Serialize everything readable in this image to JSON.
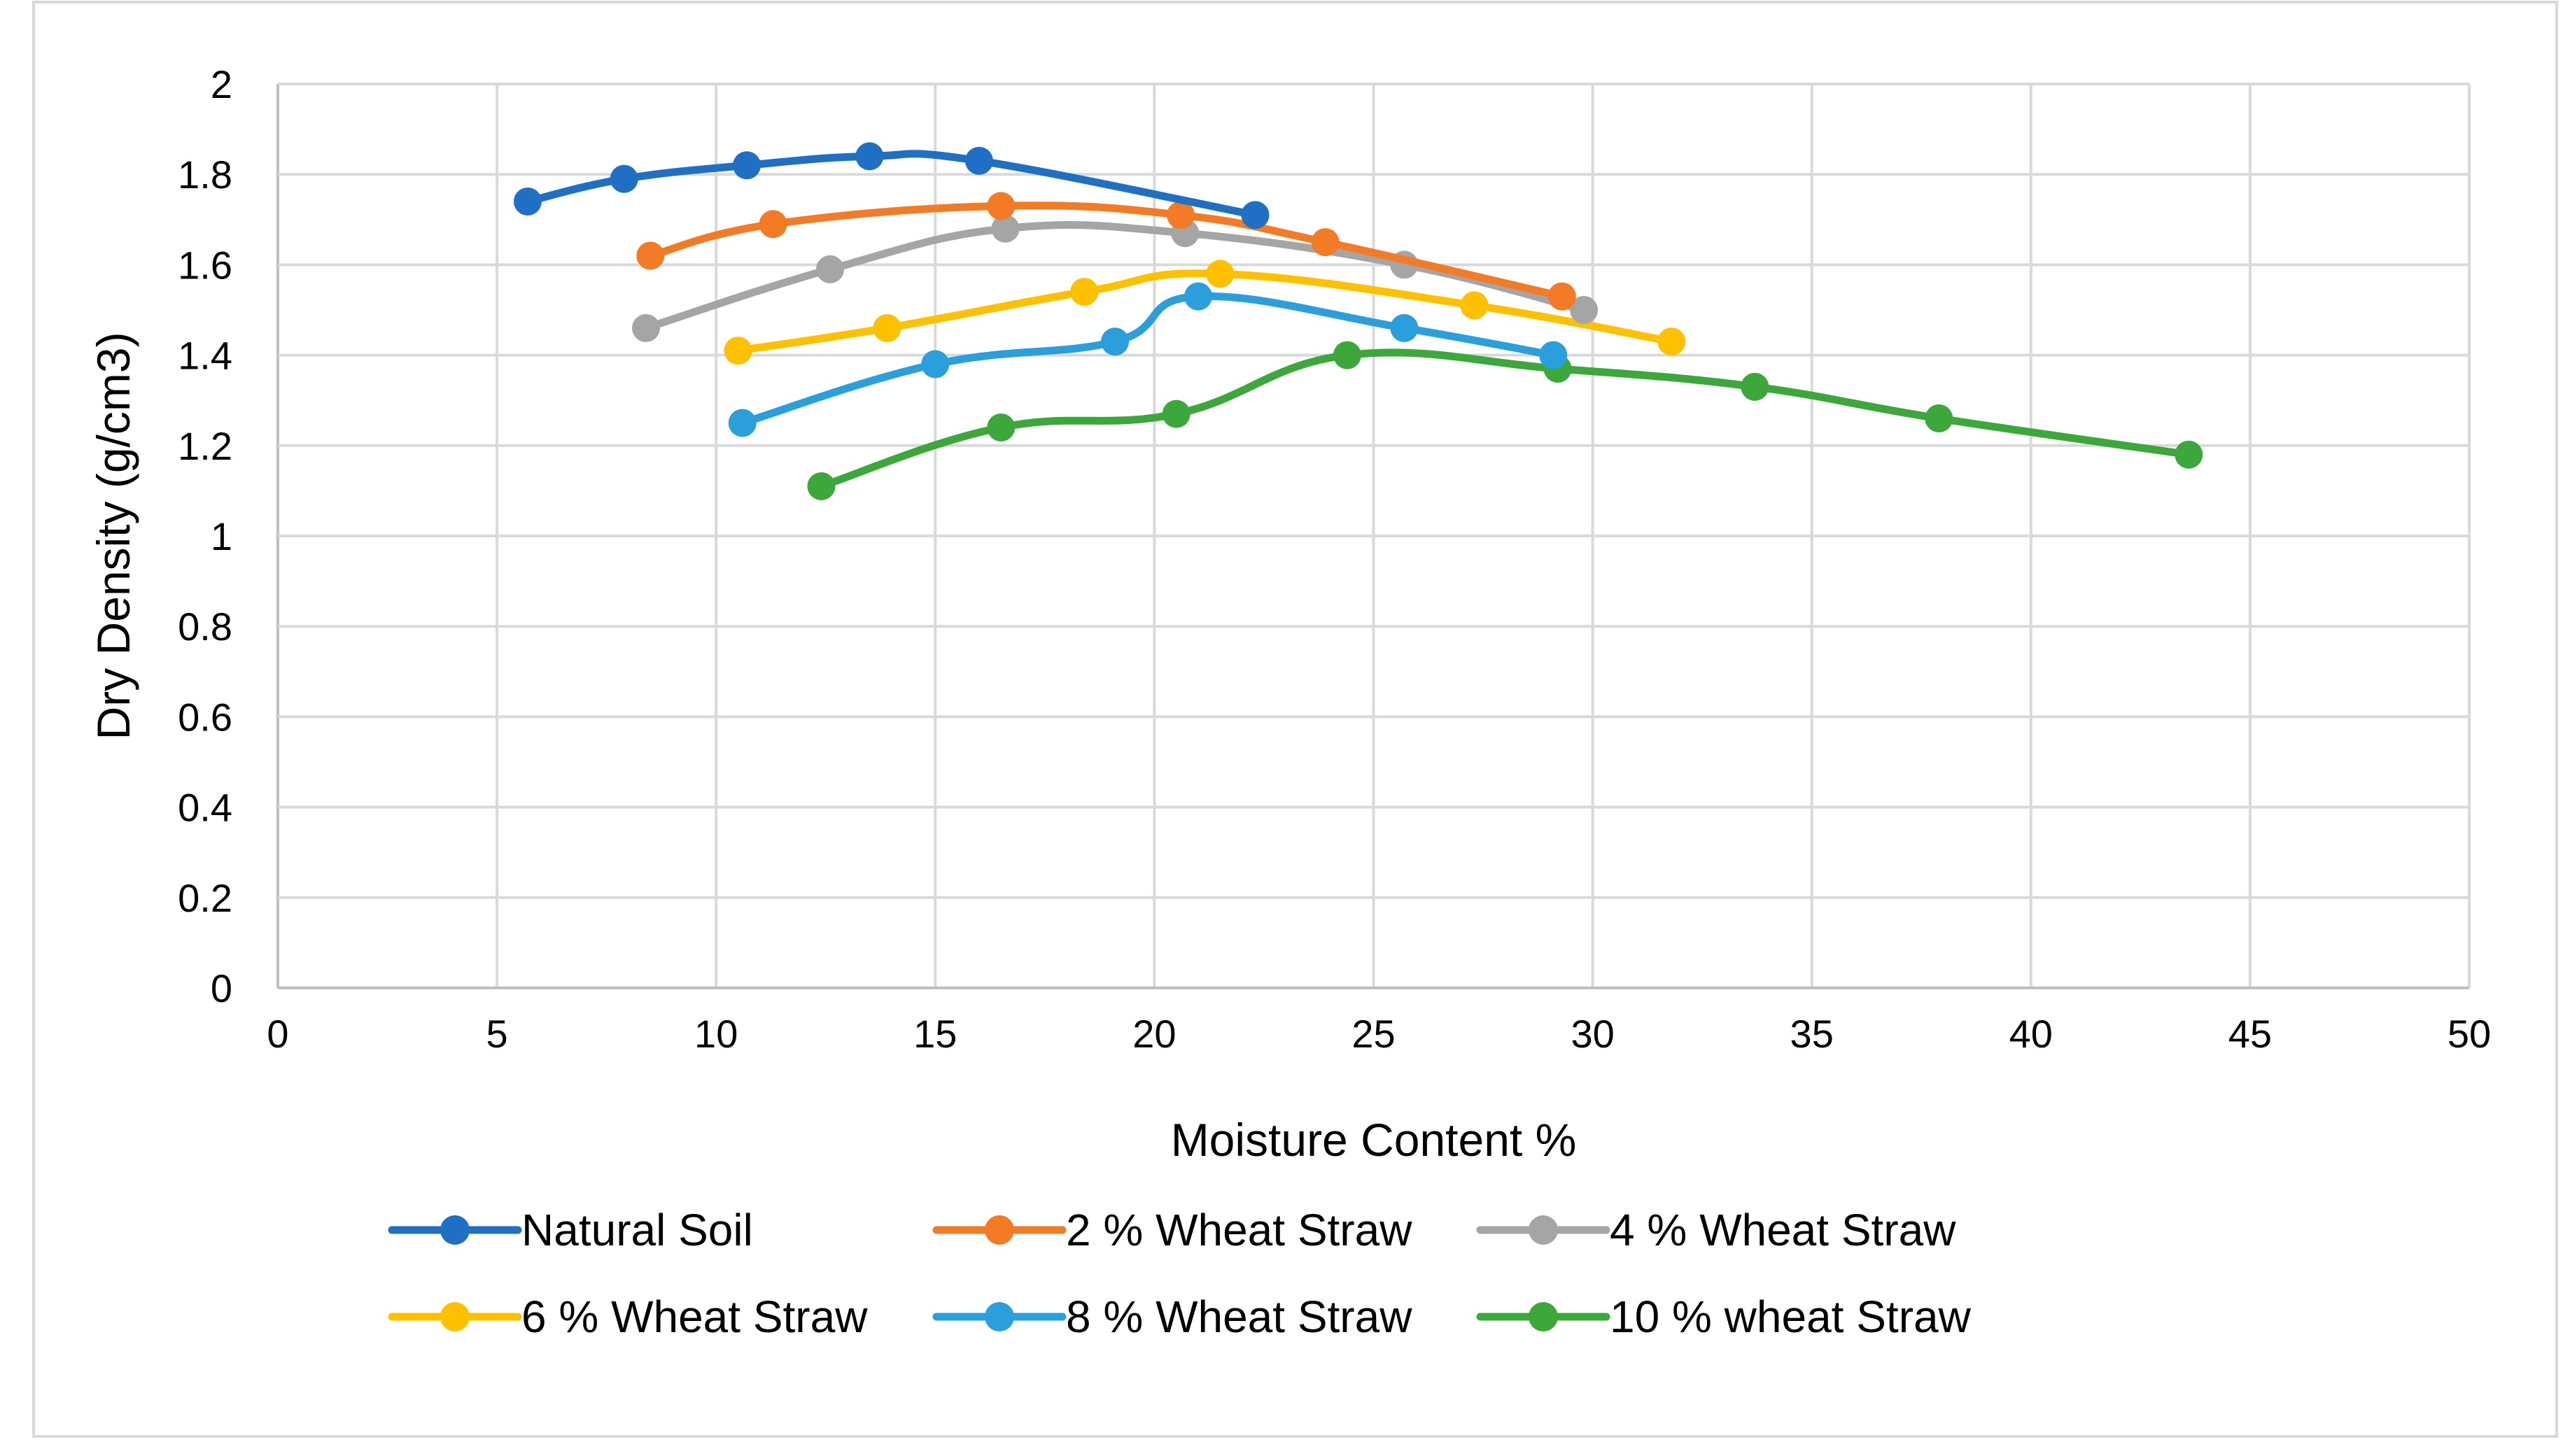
{
  "chart_data": {
    "type": "line",
    "title": "",
    "xlabel": "Moisture Content %",
    "ylabel": "Dry Density (g/cm3)",
    "xlim": [
      0,
      50
    ],
    "ylim": [
      0,
      2
    ],
    "x_ticks": [
      0,
      5,
      10,
      15,
      20,
      25,
      30,
      35,
      40,
      45,
      50
    ],
    "y_ticks": [
      0,
      0.2,
      0.4,
      0.6,
      0.8,
      1,
      1.2,
      1.4,
      1.6,
      1.8,
      2
    ],
    "grid": true,
    "smooth": true,
    "legend_position": "bottom",
    "series": [
      {
        "name": "Natural Soil",
        "color": "#1f6fc5",
        "x": [
          5.7,
          7.9,
          10.7,
          13.5,
          16.0,
          22.3
        ],
        "y": [
          1.74,
          1.79,
          1.82,
          1.84,
          1.83,
          1.71
        ]
      },
      {
        "name": "2 % Wheat Straw",
        "color": "#f47b26",
        "x": [
          8.5,
          11.3,
          16.5,
          20.6,
          23.9,
          29.3
        ],
        "y": [
          1.62,
          1.69,
          1.73,
          1.71,
          1.65,
          1.53
        ]
      },
      {
        "name": "4 % Wheat Straw",
        "color": "#a5a5a5",
        "x": [
          8.4,
          12.6,
          16.6,
          20.7,
          25.7,
          29.8
        ],
        "y": [
          1.46,
          1.59,
          1.68,
          1.67,
          1.6,
          1.5
        ]
      },
      {
        "name": "6 % Wheat Straw",
        "color": "#ffc000",
        "x": [
          10.5,
          13.9,
          18.4,
          21.5,
          27.3,
          31.8
        ],
        "y": [
          1.41,
          1.46,
          1.54,
          1.58,
          1.51,
          1.43
        ]
      },
      {
        "name": "8 % Wheat Straw",
        "color": "#2a9fdc",
        "x": [
          10.6,
          15.0,
          19.1,
          21.0,
          25.7,
          29.1
        ],
        "y": [
          1.25,
          1.38,
          1.43,
          1.53,
          1.46,
          1.4
        ]
      },
      {
        "name": "10 % wheat Straw",
        "color": "#3ca83c",
        "x": [
          12.4,
          16.5,
          20.5,
          24.4,
          29.2,
          33.7,
          37.9,
          43.6
        ],
        "y": [
          1.11,
          1.24,
          1.27,
          1.4,
          1.37,
          1.33,
          1.26,
          1.18
        ]
      }
    ]
  }
}
